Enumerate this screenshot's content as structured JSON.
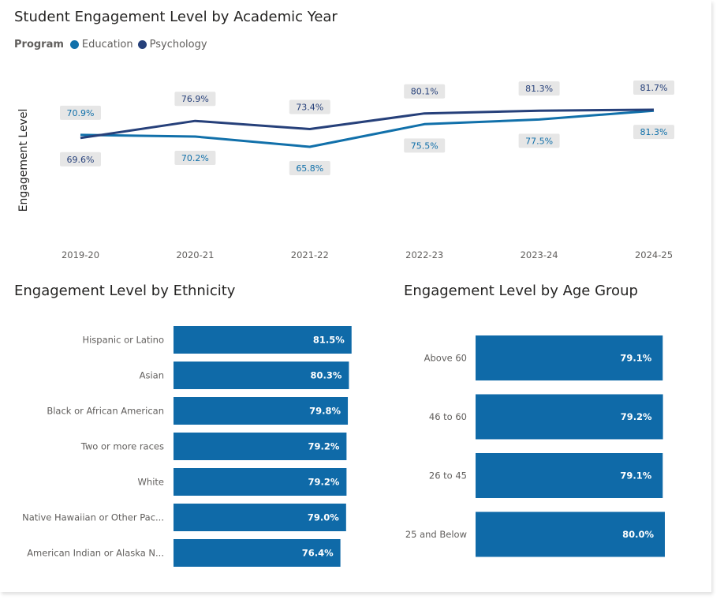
{
  "colors": {
    "education": "#1170aa",
    "psychology": "#26407a",
    "bar": "#0f6aa8",
    "label_bg": "#e6e6e6"
  },
  "line_chart": {
    "title": "Student Engagement Level by Academic Year",
    "legend_title": "Program",
    "ylabel": "Engagement Level"
  },
  "ethnicity_chart": {
    "title": "Engagement Level by Ethnicity"
  },
  "age_chart": {
    "title": "Engagement Level by Age Group"
  },
  "chart_data": [
    {
      "type": "line",
      "title": "Student Engagement Level by Academic Year",
      "xlabel": "",
      "ylabel": "Engagement Level",
      "x": [
        "2019-20",
        "2020-21",
        "2021-22",
        "2022-23",
        "2023-24",
        "2024-25"
      ],
      "series": [
        {
          "name": "Education",
          "values": [
            70.9,
            70.2,
            65.8,
            75.5,
            77.5,
            81.3
          ],
          "labels": [
            "70.9%",
            "70.2%",
            "65.8%",
            "75.5%",
            "77.5%",
            "81.3%"
          ]
        },
        {
          "name": "Psychology",
          "values": [
            69.6,
            76.9,
            73.4,
            80.1,
            81.3,
            81.7
          ],
          "labels": [
            "69.6%",
            "76.9%",
            "73.4%",
            "80.1%",
            "81.3%",
            "81.7%"
          ]
        }
      ],
      "legend_position": "top-left",
      "grid": false
    },
    {
      "type": "bar",
      "orientation": "horizontal",
      "title": "Engagement Level by Ethnicity",
      "categories": [
        "Hispanic or Latino",
        "Asian",
        "Black or African American",
        "Two or more races",
        "White",
        "Native Hawaiian or Other Pac...",
        "American Indian or Alaska N..."
      ],
      "values": [
        81.5,
        80.3,
        79.8,
        79.2,
        79.2,
        79.0,
        76.4
      ],
      "labels": [
        "81.5%",
        "80.3%",
        "79.8%",
        "79.2%",
        "79.2%",
        "79.0%",
        "76.4%"
      ],
      "grid": false
    },
    {
      "type": "bar",
      "orientation": "horizontal",
      "title": "Engagement Level by Age Group",
      "categories": [
        "Above 60",
        "46 to 60",
        "26 to 45",
        "25 and Below"
      ],
      "values": [
        79.1,
        79.2,
        79.1,
        80.0
      ],
      "labels": [
        "79.1%",
        "79.2%",
        "79.1%",
        "80.0%"
      ],
      "grid": false
    }
  ]
}
